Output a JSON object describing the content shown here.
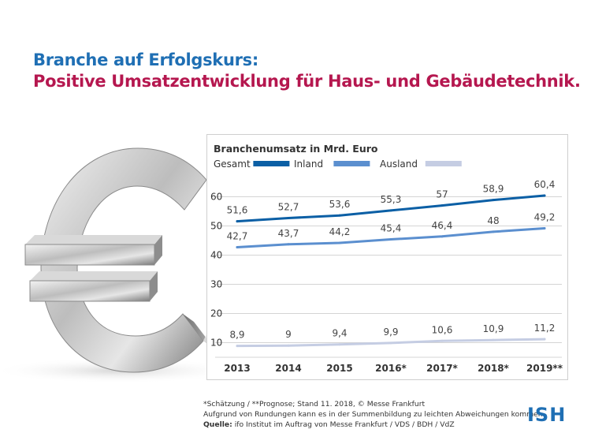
{
  "header": {
    "title": "Branche auf Erfolgskurs:",
    "subtitle": "Positive Umsatzentwicklung für Haus- und Gebäudetechnik."
  },
  "chart_data": {
    "type": "line",
    "title": "Branchenumsatz in Mrd. Euro",
    "categories": [
      "2013",
      "2014",
      "2015",
      "2016*",
      "2017*",
      "2018*",
      "2019**"
    ],
    "series": [
      {
        "name": "Gesamt",
        "color": "#0b5fa5",
        "values": [
          51.6,
          52.7,
          53.6,
          55.3,
          57,
          58.9,
          60.4
        ],
        "labels": [
          "51,6",
          "52,7",
          "53,6",
          "55,3",
          "57",
          "58,9",
          "60,4"
        ]
      },
      {
        "name": "Inland",
        "color": "#5b8fcf",
        "values": [
          42.7,
          43.7,
          44.2,
          45.4,
          46.4,
          48,
          49.2
        ],
        "labels": [
          "42,7",
          "43,7",
          "44,2",
          "45,4",
          "46,4",
          "48",
          "49,2"
        ]
      },
      {
        "name": "Ausland",
        "color": "#c5cde3",
        "values": [
          8.9,
          9,
          9.4,
          9.9,
          10.6,
          10.9,
          11.2
        ],
        "labels": [
          "8,9",
          "9",
          "9,4",
          "9,9",
          "10,6",
          "10,9",
          "11,2"
        ]
      }
    ],
    "yticks": [
      10,
      20,
      30,
      40,
      50,
      60
    ],
    "ylim": [
      5,
      65
    ],
    "grid": true,
    "legend_position": "top-left"
  },
  "footer": {
    "note": "*Schätzung / **Prognose; Stand 11. 2018, © Messe Frankfurt",
    "disclaimer": "Aufgrund von Rundungen kann es in der Summenbildung zu leichten Abweichungen kommen.",
    "source_label": "Quelle:",
    "source_text": " ifo Institut im Auftrag von Messe Frankfurt / VDS / BDH / VdZ"
  },
  "logo": {
    "text": "ISH"
  }
}
